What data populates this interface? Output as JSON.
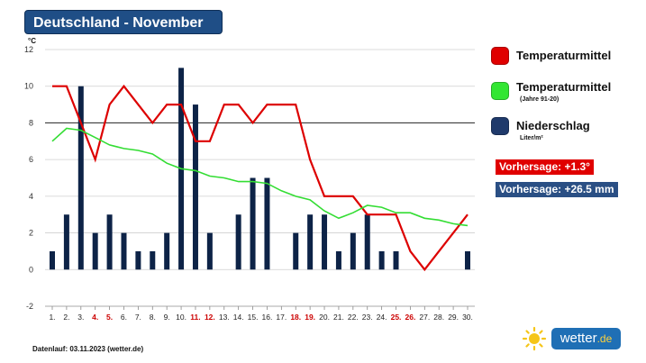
{
  "header": {
    "title": "Deutschland - November"
  },
  "legend": {
    "items": [
      {
        "label": "Temperaturmittel",
        "sub": "",
        "color": "#e00000"
      },
      {
        "label": "Temperaturmittel",
        "sub": "(Jahre 91-20)",
        "color": "#33e633"
      },
      {
        "label": "Niederschlag",
        "sub": "Liter/m²",
        "color": "#1f3a6b"
      }
    ]
  },
  "forecast": {
    "temperature": {
      "label": "Vorhersage: +1.3°",
      "color": "#e00000"
    },
    "precipitation": {
      "label": "Vorhersage: +26.5 mm",
      "color": "#2a4f84"
    }
  },
  "footer": {
    "text": "Datenlauf: 03.11.2023 (wetter.de)"
  },
  "logo": {
    "name": "wetter",
    "tld": ".de",
    "icon": "sun-icon"
  },
  "chart_data": {
    "type": "bar",
    "ylabel": "°C",
    "ylim": [
      -2,
      12
    ],
    "yticks": [
      -2,
      0,
      2,
      4,
      6,
      8,
      10,
      12
    ],
    "reference_line": 8,
    "categories": [
      "1.",
      "2.",
      "3.",
      "4.",
      "5.",
      "6.",
      "7.",
      "8.",
      "9.",
      "10.",
      "11.",
      "12.",
      "13.",
      "14.",
      "15.",
      "16.",
      "17.",
      "18.",
      "19.",
      "20.",
      "21.",
      "22.",
      "23.",
      "24.",
      "25.",
      "26.",
      "27.",
      "28.",
      "29.",
      "30."
    ],
    "weekend_days": [
      4,
      5,
      11,
      12,
      18,
      19,
      25,
      26
    ],
    "weekend_color": "#cc0000",
    "series": [
      {
        "name": "Niederschlag",
        "kind": "bar",
        "color": "#0d2347",
        "values": [
          1,
          3,
          10,
          2,
          3,
          2,
          1,
          1,
          2,
          11,
          9,
          2,
          0,
          3,
          5,
          5,
          0,
          2,
          3,
          3,
          1,
          2,
          3,
          1,
          1,
          0,
          0,
          0,
          0,
          1
        ]
      },
      {
        "name": "Temperaturmittel",
        "kind": "line",
        "color": "#dd0000",
        "values": [
          10,
          10,
          8,
          6,
          9,
          10,
          9,
          8,
          9,
          9,
          7,
          7,
          9,
          9,
          8,
          9,
          9,
          9,
          6,
          4,
          4,
          4,
          3,
          3,
          3,
          1,
          0,
          1,
          2,
          3
        ]
      },
      {
        "name": "Temperaturmittel (Jahre 91-20)",
        "kind": "line",
        "color": "#33dd33",
        "values": [
          7,
          7.7,
          7.6,
          7.2,
          6.8,
          6.6,
          6.5,
          6.3,
          5.8,
          5.5,
          5.4,
          5.1,
          5.0,
          4.8,
          4.8,
          4.7,
          4.3,
          4.0,
          3.8,
          3.2,
          2.8,
          3.1,
          3.5,
          3.4,
          3.1,
          3.1,
          2.8,
          2.7,
          2.5,
          2.4
        ]
      }
    ]
  }
}
